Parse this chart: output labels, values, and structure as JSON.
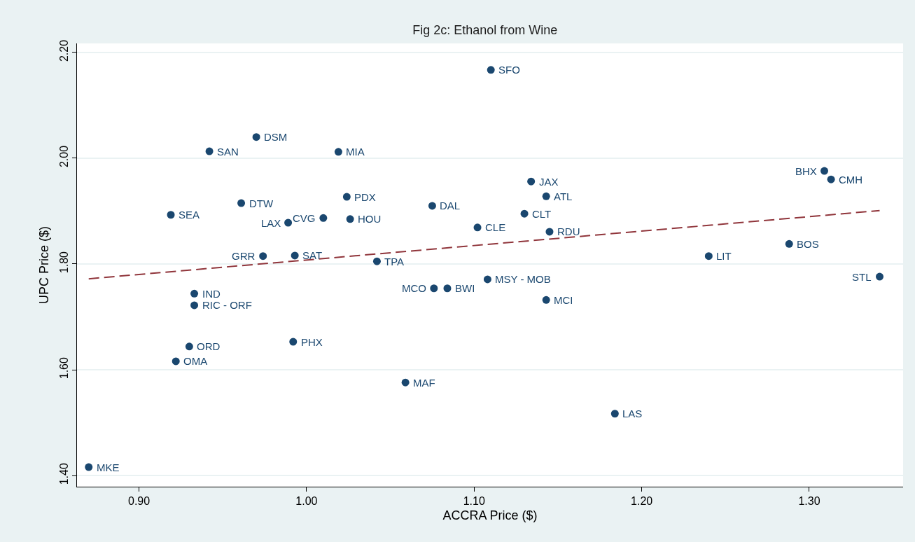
{
  "chart_data": {
    "type": "scatter",
    "title": "Fig 2c: Ethanol from Wine",
    "xlabel": "ACCRA Price ($)",
    "ylabel": "UPC Price ($)",
    "xlim": [
      0.863,
      1.356
    ],
    "ylim": [
      1.379,
      2.217
    ],
    "xticks": [
      {
        "value": 0.9,
        "label": "0.90"
      },
      {
        "value": 1.0,
        "label": "1.00"
      },
      {
        "value": 1.1,
        "label": "1.10"
      },
      {
        "value": 1.2,
        "label": "1.20"
      },
      {
        "value": 1.3,
        "label": "1.30"
      }
    ],
    "yticks": [
      {
        "value": 1.4,
        "label": "1.40"
      },
      {
        "value": 1.6,
        "label": "1.60"
      },
      {
        "value": 1.8,
        "label": "1.80"
      },
      {
        "value": 2.0,
        "label": "2.00"
      },
      {
        "value": 2.2,
        "label": "2.20"
      }
    ],
    "grid": "y",
    "legend": false,
    "marker": "circle",
    "series": [
      {
        "color": "#1a476f",
        "x": [
          0.87,
          0.922,
          0.93,
          0.933,
          0.933,
          0.919,
          0.942,
          0.97,
          0.961,
          0.974,
          0.989,
          1.01,
          0.993,
          1.019,
          1.024,
          1.026,
          0.992,
          1.042,
          1.059,
          1.075,
          1.076,
          1.084,
          1.102,
          1.108,
          1.11,
          1.134,
          1.13,
          1.143,
          1.145,
          1.143,
          1.184,
          1.24,
          1.288,
          1.309,
          1.313,
          1.342
        ],
        "values": [
          1.416,
          1.616,
          1.644,
          1.722,
          1.744,
          1.893,
          2.013,
          2.04,
          1.915,
          1.815,
          1.878,
          1.887,
          1.816,
          2.012,
          1.927,
          1.885,
          1.653,
          1.805,
          1.576,
          1.91,
          1.754,
          1.754,
          1.869,
          1.771,
          2.167,
          1.956,
          1.895,
          1.928,
          1.861,
          1.732,
          1.517,
          1.815,
          1.838,
          1.976,
          1.96,
          1.776
        ]
      },
      {
        "type": "line",
        "color": "#90353b",
        "line_style": "dashed",
        "marker": "none",
        "x": [
          0.87,
          1.342
        ],
        "values": [
          1.772,
          1.901
        ]
      }
    ],
    "annotations": [
      {
        "text": "MKE",
        "x": 0.87,
        "y": 1.416
      },
      {
        "text": "OMA",
        "x": 0.922,
        "y": 1.616
      },
      {
        "text": "ORD",
        "x": 0.93,
        "y": 1.644
      },
      {
        "text": "RIC - ORF",
        "x": 0.933,
        "y": 1.722
      },
      {
        "text": "IND",
        "x": 0.933,
        "y": 1.744
      },
      {
        "text": "SEA",
        "x": 0.919,
        "y": 1.893
      },
      {
        "text": "SAN",
        "x": 0.942,
        "y": 2.013
      },
      {
        "text": "DSM",
        "x": 0.97,
        "y": 2.04
      },
      {
        "text": "DTW",
        "x": 0.961,
        "y": 1.915
      },
      {
        "text": "GRR",
        "x": 0.974,
        "y": 1.815
      },
      {
        "text": "LAX",
        "x": 0.989,
        "y": 1.878
      },
      {
        "text": "CVG",
        "x": 1.01,
        "y": 1.887
      },
      {
        "text": "SAT",
        "x": 0.993,
        "y": 1.816
      },
      {
        "text": "MIA",
        "x": 1.019,
        "y": 2.012
      },
      {
        "text": "PDX",
        "x": 1.024,
        "y": 1.927
      },
      {
        "text": "HOU",
        "x": 1.026,
        "y": 1.885
      },
      {
        "text": "PHX",
        "x": 0.992,
        "y": 1.653
      },
      {
        "text": "TPA",
        "x": 1.042,
        "y": 1.805
      },
      {
        "text": "MAF",
        "x": 1.059,
        "y": 1.576
      },
      {
        "text": "DAL",
        "x": 1.075,
        "y": 1.91
      },
      {
        "text": "MCO",
        "x": 1.076,
        "y": 1.754
      },
      {
        "text": "BWI",
        "x": 1.084,
        "y": 1.754
      },
      {
        "text": "CLE",
        "x": 1.102,
        "y": 1.869
      },
      {
        "text": "MSY - MOB",
        "x": 1.108,
        "y": 1.771
      },
      {
        "text": "SFO",
        "x": 1.11,
        "y": 2.167
      },
      {
        "text": "JAX",
        "x": 1.134,
        "y": 1.956
      },
      {
        "text": "CLT",
        "x": 1.13,
        "y": 1.895
      },
      {
        "text": "ATL",
        "x": 1.143,
        "y": 1.928
      },
      {
        "text": "RDU",
        "x": 1.145,
        "y": 1.861
      },
      {
        "text": "MCI",
        "x": 1.143,
        "y": 1.732
      },
      {
        "text": "LAS",
        "x": 1.184,
        "y": 1.517
      },
      {
        "text": "LIT",
        "x": 1.24,
        "y": 1.815
      },
      {
        "text": "BOS",
        "x": 1.288,
        "y": 1.838
      },
      {
        "text": "BHX",
        "x": 1.309,
        "y": 1.976
      },
      {
        "text": "CMH",
        "x": 1.313,
        "y": 1.96
      },
      {
        "text": "STL",
        "x": 1.342,
        "y": 1.776
      }
    ]
  }
}
